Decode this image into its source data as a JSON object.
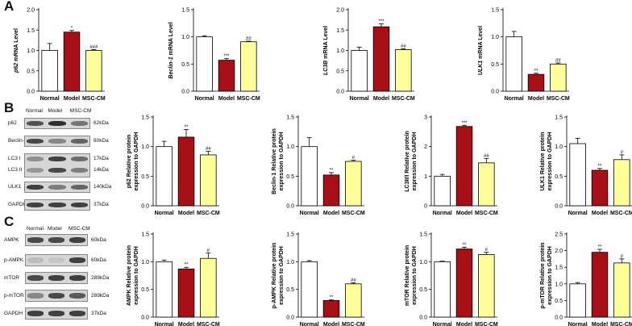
{
  "panel_labels": [
    "A",
    "B",
    "C"
  ],
  "colors": {
    "normal": "#ffffff",
    "model": "#a50f15",
    "msc": "#ffff99",
    "axis": "#000000",
    "band": "#262626"
  },
  "blots": {
    "B": {
      "lanes": [
        "Normal",
        "Model",
        "MSC-CM"
      ],
      "rows": [
        {
          "name": "p62",
          "kda": "62kDa",
          "intensity": [
            0.75,
            0.95,
            0.55
          ]
        },
        {
          "name": "Beclin-1",
          "kda": "60kDa",
          "intensity": [
            0.8,
            0.45,
            0.65
          ]
        },
        {
          "name": "LC3 I",
          "kda": "17kDa",
          "intensity": [
            0.4,
            0.85,
            0.6
          ]
        },
        {
          "name": "LC3 II",
          "kda": "14kDa",
          "intensity": [
            0.35,
            0.8,
            0.5
          ]
        },
        {
          "name": "ULK1",
          "kda": "140kDa",
          "intensity": [
            0.85,
            0.5,
            0.65
          ]
        },
        {
          "name": "GAPDH",
          "kda": "37kDa",
          "intensity": [
            0.85,
            0.85,
            0.85
          ]
        }
      ]
    },
    "C": {
      "lanes": [
        "Normal",
        "Model",
        "MSC-CM"
      ],
      "rows": [
        {
          "name": "AMPK",
          "kda": "60kDa",
          "intensity": [
            0.8,
            0.8,
            0.85
          ]
        },
        {
          "name": "p-AMPK",
          "kda": "60kDa",
          "intensity": [
            0.15,
            0.1,
            0.85
          ]
        },
        {
          "name": "mTOR",
          "kda": "289kDa",
          "intensity": [
            0.8,
            0.85,
            0.85
          ]
        },
        {
          "name": "p-mTOR",
          "kda": "289kDa",
          "intensity": [
            0.45,
            0.8,
            0.7
          ]
        },
        {
          "name": "GAPDH",
          "kda": "37kDa",
          "intensity": [
            0.85,
            0.85,
            0.85
          ]
        }
      ]
    }
  },
  "chart_data": [
    {
      "type": "bar",
      "panel": "A",
      "ylabel_italic": "p62",
      "ylabel_rest": " mRNA Level",
      "ylim": [
        0,
        2.0
      ],
      "yticks": [
        "0.0",
        "0.5",
        "1.0",
        "1.5",
        "2.0"
      ],
      "categories": [
        "Normal",
        "Model",
        "MSC-CM"
      ],
      "values": [
        1.0,
        1.45,
        1.0
      ],
      "errors": [
        0.17,
        0.04,
        0.02
      ],
      "annotations": [
        "",
        "*",
        "###"
      ]
    },
    {
      "type": "bar",
      "panel": "A",
      "ylabel_italic": "Beclin-1",
      "ylabel_rest": " mRNA Level",
      "ylim": [
        0,
        1.5
      ],
      "yticks": [
        "0.0",
        "0.5",
        "1.0",
        "1.5"
      ],
      "categories": [
        "Normal",
        "Model",
        "MSC-CM"
      ],
      "values": [
        1.0,
        0.57,
        0.91
      ],
      "errors": [
        0.02,
        0.03,
        0.01
      ],
      "annotations": [
        "",
        "***",
        "##"
      ]
    },
    {
      "type": "bar",
      "panel": "A",
      "ylabel_italic": "LC3B",
      "ylabel_rest": " mRNA Level",
      "ylim": [
        0,
        2.0
      ],
      "yticks": [
        "0.0",
        "0.5",
        "1.0",
        "1.5",
        "2.0"
      ],
      "categories": [
        "Normal",
        "Model",
        "MSC-CM"
      ],
      "values": [
        1.0,
        1.58,
        1.02
      ],
      "errors": [
        0.08,
        0.07,
        0.02
      ],
      "annotations": [
        "",
        "***",
        "##"
      ]
    },
    {
      "type": "bar",
      "panel": "A",
      "ylabel_italic": "ULK1",
      "ylabel_rest": " mRNA Level",
      "ylim": [
        0,
        1.5
      ],
      "yticks": [
        "0.0",
        "0.5",
        "1.0",
        "1.5"
      ],
      "categories": [
        "Normal",
        "Model",
        "MSC-CM"
      ],
      "values": [
        1.0,
        0.31,
        0.5
      ],
      "errors": [
        0.1,
        0.02,
        0.02
      ],
      "annotations": [
        "",
        "**",
        "##"
      ]
    },
    {
      "type": "bar",
      "panel": "B",
      "ylabel_lines": [
        "p62 Relative protein",
        "expression to GAPDH"
      ],
      "ylim": [
        0,
        1.5
      ],
      "yticks": [
        "0.0",
        "0.5",
        "1.0",
        "1.5"
      ],
      "categories": [
        "Normal",
        "Model",
        "MSC-CM"
      ],
      "values": [
        1.0,
        1.16,
        0.86
      ],
      "errors": [
        0.09,
        0.13,
        0.06
      ],
      "annotations": [
        "",
        "**",
        "##"
      ]
    },
    {
      "type": "bar",
      "panel": "B",
      "ylabel_lines": [
        "Beclin-1 Relative protein",
        "expression to GAPDH"
      ],
      "ylim": [
        0,
        1.5
      ],
      "yticks": [
        "0.0",
        "0.5",
        "1.0",
        "1.5"
      ],
      "categories": [
        "Normal",
        "Model",
        "MSC-CM"
      ],
      "values": [
        1.0,
        0.52,
        0.75
      ],
      "errors": [
        0.15,
        0.04,
        0.02
      ],
      "annotations": [
        "",
        "**",
        "#"
      ]
    },
    {
      "type": "bar",
      "panel": "B",
      "ylabel_lines": [
        "LC3II/I Relative protein",
        "expression to GAPDH"
      ],
      "ylim": [
        0,
        3
      ],
      "yticks": [
        "0",
        "1",
        "2",
        "3"
      ],
      "categories": [
        "Normal",
        "Model",
        "MSC-CM"
      ],
      "values": [
        1.0,
        2.68,
        1.45
      ],
      "errors": [
        0.06,
        0.04,
        0.15
      ],
      "annotations": [
        "",
        "***",
        "##"
      ]
    },
    {
      "type": "bar",
      "panel": "B",
      "ylabel_lines": [
        "ULK1 Relative protein",
        "expression to GAPDH"
      ],
      "ylim": [
        0,
        1.5
      ],
      "yticks": [
        "0.0",
        "0.5",
        "1.0",
        "1.5"
      ],
      "categories": [
        "Normal",
        "Model",
        "MSC-CM"
      ],
      "values": [
        1.05,
        0.6,
        0.78
      ],
      "errors": [
        0.09,
        0.03,
        0.08
      ],
      "annotations": [
        "",
        "**",
        "#"
      ]
    },
    {
      "type": "bar",
      "panel": "C",
      "ylabel_lines": [
        "AMPK Relative protein",
        "expression to GAPDH"
      ],
      "ylim": [
        0,
        1.5
      ],
      "yticks": [
        "0.0",
        "0.5",
        "1.0",
        "1.5"
      ],
      "categories": [
        "Normal",
        "Model",
        "MSC-CM"
      ],
      "values": [
        1.0,
        0.87,
        1.06
      ],
      "errors": [
        0.03,
        0.03,
        0.1
      ],
      "annotations": [
        "",
        "**",
        "#"
      ]
    },
    {
      "type": "bar",
      "panel": "C",
      "ylabel_lines": [
        "p-AMPK Relative protein",
        "expression to GAPDH"
      ],
      "ylim": [
        0,
        1.5
      ],
      "yticks": [
        "0.0",
        "0.5",
        "1.0",
        "1.5"
      ],
      "categories": [
        "Normal",
        "Model",
        "MSC-CM"
      ],
      "values": [
        1.0,
        0.3,
        0.6
      ],
      "errors": [
        0.02,
        0.01,
        0.02
      ],
      "annotations": [
        "",
        "**",
        "##"
      ]
    },
    {
      "type": "bar",
      "panel": "C",
      "ylabel_lines": [
        "mTOR Relative protein",
        "expression to GAPDH"
      ],
      "ylim": [
        0,
        1.5
      ],
      "yticks": [
        "0.0",
        "0.5",
        "1.0",
        "1.5"
      ],
      "categories": [
        "Normal",
        "Model",
        "MSC-CM"
      ],
      "values": [
        1.0,
        1.23,
        1.13
      ],
      "errors": [
        0.01,
        0.03,
        0.04
      ],
      "annotations": [
        "",
        "**",
        "#"
      ]
    },
    {
      "type": "bar",
      "panel": "C",
      "ylabel_lines": [
        "p-mTOR Relative protein",
        "expression to GAPDH"
      ],
      "ylim": [
        0,
        2.5
      ],
      "yticks": [
        "0.0",
        "0.5",
        "1.0",
        "1.5",
        "2.0",
        "2.5"
      ],
      "categories": [
        "Normal",
        "Model",
        "MSC-CM"
      ],
      "values": [
        1.0,
        1.95,
        1.63
      ],
      "errors": [
        0.04,
        0.09,
        0.12
      ],
      "annotations": [
        "",
        "**",
        "#"
      ]
    }
  ]
}
